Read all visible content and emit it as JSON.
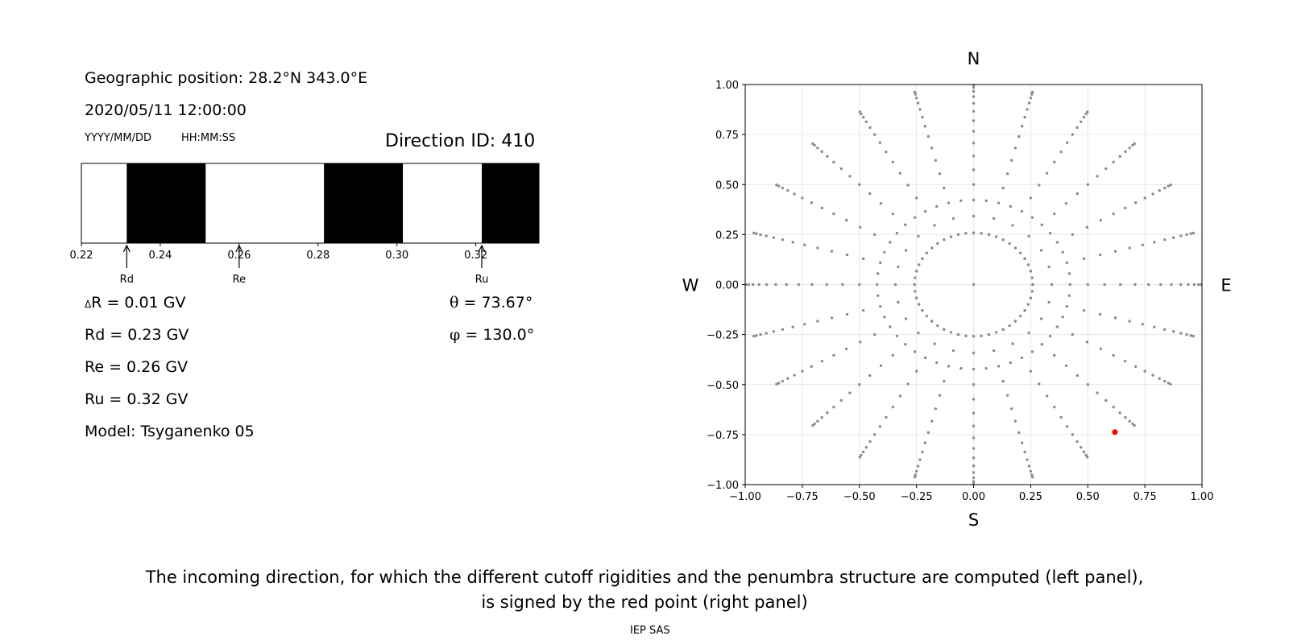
{
  "info": {
    "geo_position": "Geographic position: 28.2°N 343.0°E",
    "datetime": "2020/05/11 12:00:00",
    "date_format": "YYYY/MM/DD",
    "time_format": "HH:MM:SS",
    "direction_id": "Direction ID: 410",
    "delta_r": "R = 0.01 GV",
    "delta_symbol": "Δ",
    "rd": "Rd = 0.23 GV",
    "re": "Re = 0.26 GV",
    "ru": "Ru = 0.32 GV",
    "model": "Model: Tsyganenko 05",
    "theta_symbol": "θ",
    "theta": "= 73.67°",
    "phi_symbol": "φ",
    "phi": "= 130.0°"
  },
  "caption": {
    "line1": "The incoming direction, for which the different cutoff rigidities and the penumbra structure are computed (left panel),",
    "line2": "is signed by the red point (right panel)"
  },
  "footer": "IEP SAS",
  "colors": {
    "allowed": "#ffffff",
    "forbidden": "#000000",
    "grid_point": "#8c8c8c",
    "selected_point": "#ff0000"
  },
  "chart_data": [
    {
      "type": "penumbra",
      "xlim": [
        0.22,
        0.336
      ],
      "tick_labels": [
        "0.22",
        "0.24",
        "0.26",
        "0.28",
        "0.30",
        "0.32"
      ],
      "tick_values": [
        0.22,
        0.24,
        0.26,
        0.28,
        0.3,
        0.32
      ],
      "forbidden_intervals": [
        [
          0.2315,
          0.2515
        ],
        [
          0.2815,
          0.3015
        ],
        [
          0.3215,
          0.336
        ]
      ],
      "markers": [
        {
          "label": "Rd",
          "value": 0.2315
        },
        {
          "label": "Re",
          "value": 0.26
        },
        {
          "label": "Ru",
          "value": 0.3215
        }
      ]
    },
    {
      "type": "scatter",
      "xlim": [
        -1.0,
        1.0
      ],
      "ylim": [
        -1.0,
        1.0
      ],
      "grid": true,
      "x_tick_labels": [
        "−1.00",
        "−0.75",
        "−0.50",
        "−0.25",
        "0.00",
        "0.25",
        "0.50",
        "0.75",
        "1.00"
      ],
      "y_tick_labels": [
        "1.00",
        "0.75",
        "0.50",
        "0.25",
        "0.00",
        "−0.25",
        "−0.50",
        "−0.75",
        "−1.00"
      ],
      "tick_values_x": [
        -1,
        -0.75,
        -0.5,
        -0.25,
        0,
        0.25,
        0.5,
        0.75,
        1
      ],
      "tick_values_y": [
        1,
        0.75,
        0.5,
        0.25,
        0,
        -0.25,
        -0.5,
        -0.75,
        -1
      ],
      "compass": {
        "north": "N",
        "south": "S",
        "west": "W",
        "east": "E"
      },
      "directions": {
        "zenith_step_deg": 5,
        "zenith_max_deg": 85,
        "azimuth_step_deg": 15,
        "zenith_start_deg": 15,
        "center_point": [
          0,
          0
        ]
      },
      "selected": {
        "x": 0.6188,
        "y": -0.7373
      }
    }
  ]
}
